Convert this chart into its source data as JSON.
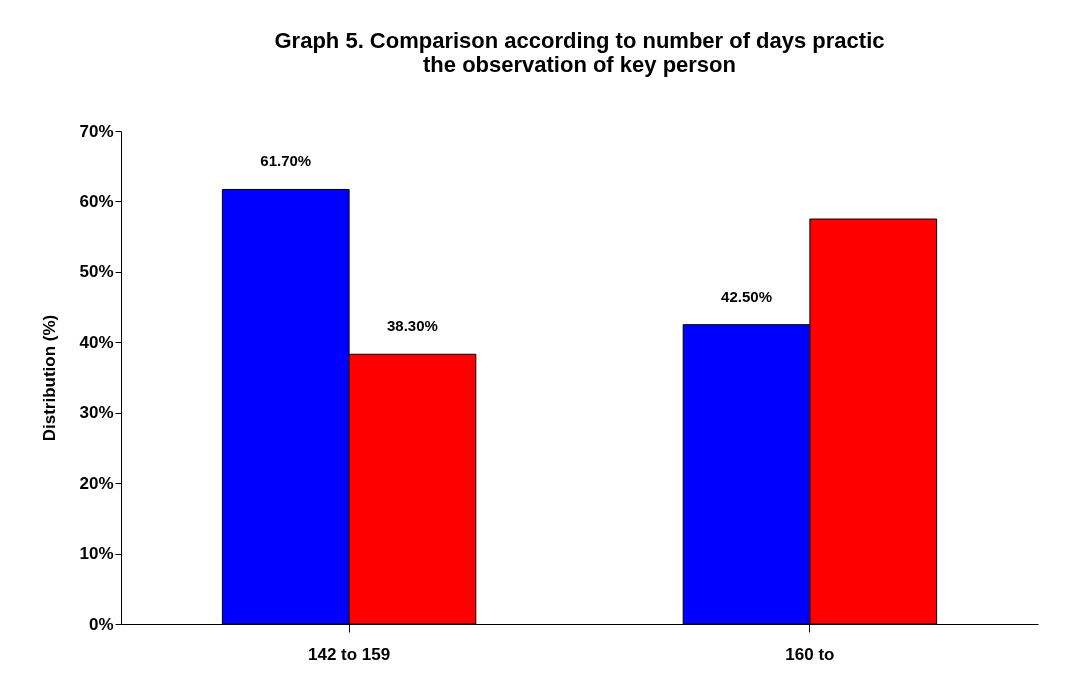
{
  "chart_data": {
    "type": "bar",
    "title": [
      "Graph 5. Comparison according to number of days practic",
      "the observation of key person"
    ],
    "ylabel": "Distribution (%)",
    "categories": [
      "142 to 159",
      "160 to"
    ],
    "series": [
      {
        "color": "#0000ff",
        "values": [
          61.7,
          42.5
        ],
        "value_labels": [
          "61.70%",
          "42.50%"
        ]
      },
      {
        "color": "#ff0000",
        "values": [
          38.3,
          57.5
        ],
        "value_labels": [
          "38.30%",
          null
        ]
      }
    ],
    "ylim": [
      0,
      70
    ],
    "yticks": [
      {
        "value": 0,
        "label": "0%"
      },
      {
        "value": 10,
        "label": "10%"
      },
      {
        "value": 20,
        "label": "20%"
      },
      {
        "value": 30,
        "label": "30%"
      },
      {
        "value": 40,
        "label": "40%"
      },
      {
        "value": 50,
        "label": "50%"
      },
      {
        "value": 60,
        "label": "60%"
      },
      {
        "value": 70,
        "label": "70%"
      }
    ],
    "grid": false
  }
}
